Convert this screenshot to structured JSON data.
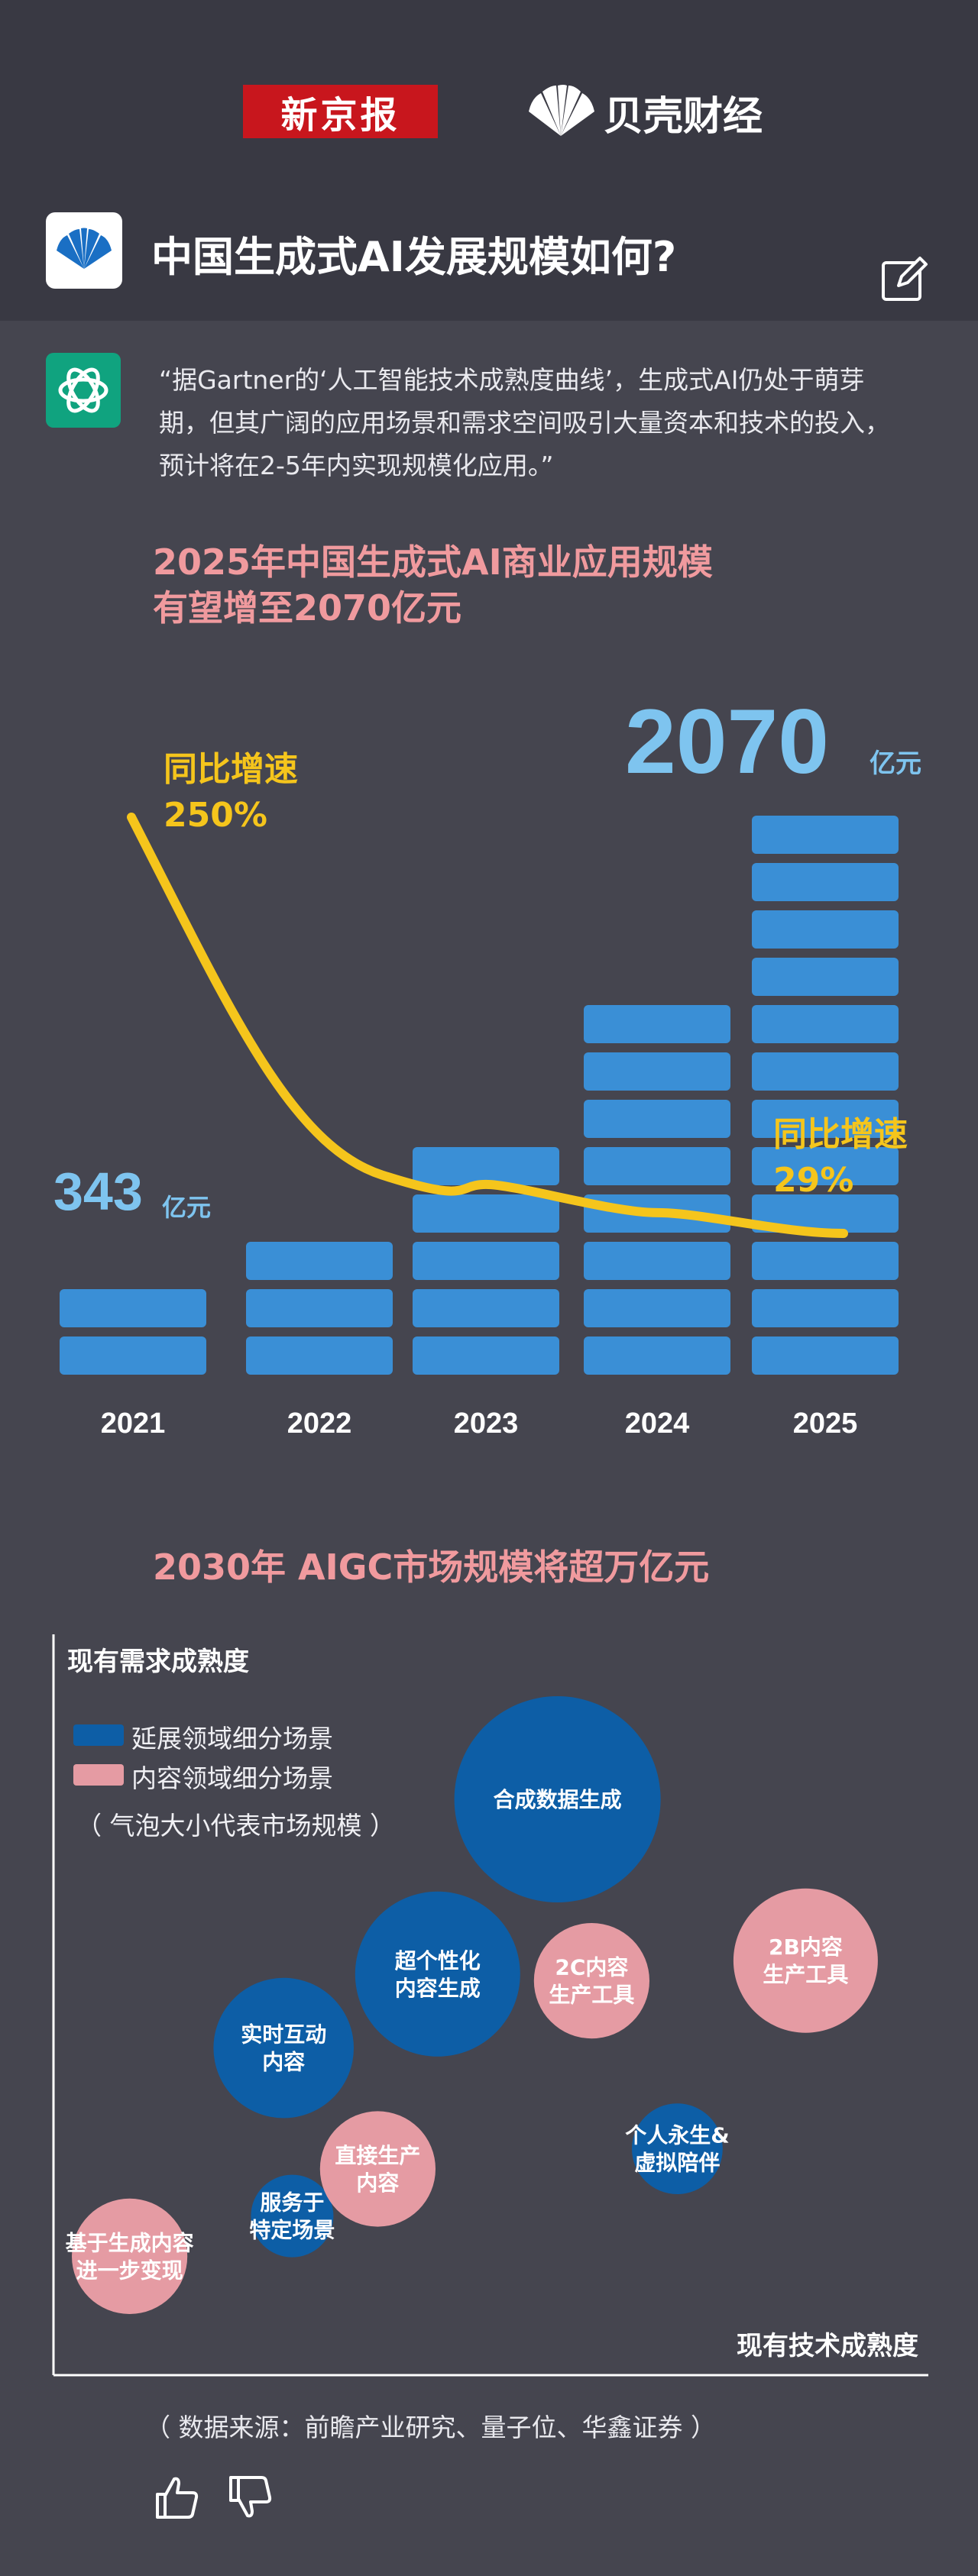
{
  "header": {
    "brand1": "新京报",
    "brand2": "贝壳财经",
    "title": "中国生成式AI发展规模如何?"
  },
  "quote": "“据Gartner的‘人工智能技术成熟度曲线’，生成式AI仍处于萌芽期，但其广阔的应用场景和需求空间吸引大量资本和技术的投入，预计将在2-5年内实现规模化应用。”",
  "section1": {
    "title_line1": "2025年中国生成式AI商业应用规模",
    "title_line2": "有望增至2070亿元",
    "value_2025": "2070",
    "value_2021": "343",
    "unit": "亿元",
    "growth_label": "同比增速",
    "growth_start": "250%",
    "growth_end": "29%"
  },
  "section2": {
    "title": "2030年 AIGC市场规模将超万亿元",
    "y_axis": "现有需求成熟度",
    "x_axis": "现有技术成熟度",
    "legend": [
      {
        "label": "延展领域细分场景",
        "color": "#0d5ea6"
      },
      {
        "label": "内容领域细分场景",
        "color": "#e59ba3"
      }
    ],
    "note": "（ 气泡大小代表市场规模 ）"
  },
  "source": "（ 数据来源：前瞻产业研究、量子位、华鑫证券 ）",
  "colors": {
    "bar": "#3a8fd6",
    "line": "#f5c51c",
    "title_pink": "#f09a9e",
    "bg": "#45454f"
  },
  "icons": [
    "shell-logo-icon",
    "edit-icon",
    "chatgpt-icon",
    "thumbs-up-icon",
    "thumbs-down-icon"
  ],
  "chart_data": [
    {
      "type": "bar",
      "categories": [
        "2021",
        "2022",
        "2023",
        "2024",
        "2025"
      ],
      "series": [
        {
          "values": [
            343,
            550,
            890,
            1400,
            2070
          ]
        }
      ],
      "line_series": [
        {
          "name": "同比增速",
          "values": [
            250,
            60,
            55,
            40,
            29
          ]
        }
      ],
      "data_labels": [
        {
          "category": "2021",
          "text": "343亿元"
        },
        {
          "category": "2025",
          "text": "2070亿元"
        }
      ],
      "title": "2025年中国生成式AI商业应用规模有望增至2070亿元"
    },
    {
      "type": "scatter",
      "title": "2030年 AIGC市场规模将超万亿元",
      "xlabel": "现有技术成熟度",
      "ylabel": "现有需求成熟度",
      "xlim": [
        0,
        100
      ],
      "ylim": [
        0,
        100
      ],
      "series": [
        {
          "name": "延展领域细分场景",
          "color": "#0d5ea6",
          "points": [
            {
              "label": "合成数据生成",
              "x": 58,
              "y": 80,
              "size": 5
            },
            {
              "label": "超个性化\n内容生成",
              "x": 44,
              "y": 54,
              "size": 4
            },
            {
              "label": "实时互动\n内容",
              "x": 26,
              "y": 43,
              "size": 3.4
            },
            {
              "label": "服务于\n特定场景",
              "x": 27,
              "y": 18,
              "size": 2
            },
            {
              "label": "个人永生&\n虚拟陪伴",
              "x": 72,
              "y": 28,
              "size": 2.2
            }
          ]
        },
        {
          "name": "内容领域细分场景",
          "color": "#e59ba3",
          "points": [
            {
              "label": "2B内容\n生产工具",
              "x": 87,
              "y": 56,
              "size": 3.5
            },
            {
              "label": "2C内容\n生产工具",
              "x": 62,
              "y": 53,
              "size": 2.8
            },
            {
              "label": "直接生产\n内容",
              "x": 37,
              "y": 25,
              "size": 2.8
            },
            {
              "label": "基于生成内容\n进一步变现",
              "x": 8,
              "y": 12,
              "size": 2.8
            }
          ]
        }
      ]
    }
  ]
}
